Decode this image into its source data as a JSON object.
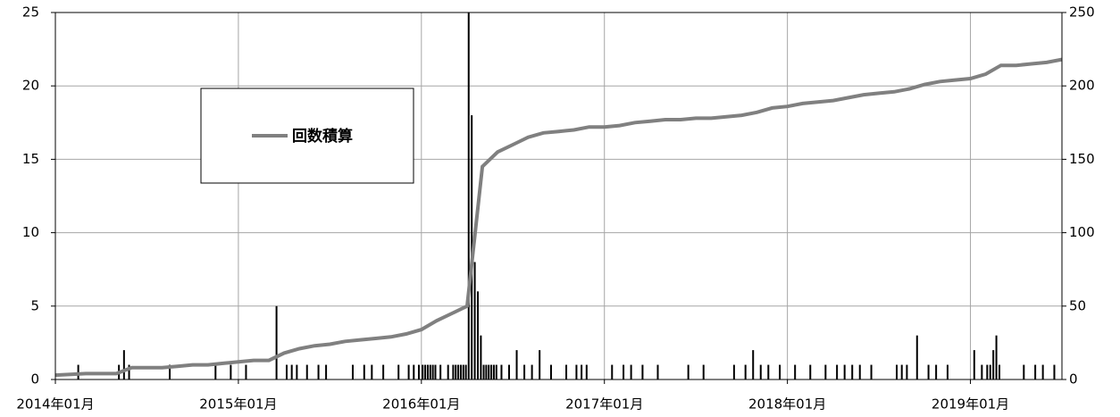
{
  "chart_data": {
    "type": "bar",
    "xlim": [
      "2014-01",
      "2019-07"
    ],
    "xticks": [
      {
        "value": "2014-01",
        "label": "2014年01月"
      },
      {
        "value": "2015-01",
        "label": "2015年01月"
      },
      {
        "value": "2016-01",
        "label": "2016年01月"
      },
      {
        "value": "2017-01",
        "label": "2017年01月"
      },
      {
        "value": "2018-01",
        "label": "2018年01月"
      },
      {
        "value": "2019-01",
        "label": "2019年01月"
      }
    ],
    "ylim": [
      0,
      25
    ],
    "yticks": [
      0,
      5,
      10,
      15,
      20,
      25
    ],
    "y2lim": [
      0,
      250
    ],
    "y2ticks": [
      0,
      50,
      100,
      150,
      200,
      250
    ],
    "grid": true,
    "series": [
      {
        "color": "#000000",
        "x": [
          "2014-02",
          "2014-05",
          "2014-05",
          "2014-05",
          "2014-08",
          "2014-11",
          "2014-12",
          "2015-01",
          "2015-03",
          "2015-04",
          "2015-04",
          "2015-04",
          "2015-05",
          "2015-06",
          "2015-06",
          "2015-08",
          "2015-09",
          "2015-09",
          "2015-10",
          "2015-11",
          "2015-12",
          "2015-12",
          "2015-12",
          "2016-01",
          "2016-01",
          "2016-01",
          "2016-01",
          "2016-01",
          "2016-01",
          "2016-02",
          "2016-02",
          "2016-03",
          "2016-03",
          "2016-03",
          "2016-03",
          "2016-03",
          "2016-03",
          "2016-04",
          "2016-04",
          "2016-04",
          "2016-04",
          "2016-04",
          "2016-05",
          "2016-05",
          "2016-05",
          "2016-05",
          "2016-05",
          "2016-05",
          "2016-06",
          "2016-06",
          "2016-07",
          "2016-07",
          "2016-08",
          "2016-08",
          "2016-09",
          "2016-10",
          "2016-11",
          "2016-11",
          "2016-11",
          "2017-01",
          "2017-02",
          "2017-02",
          "2017-03",
          "2017-04",
          "2017-06",
          "2017-07",
          "2017-09",
          "2017-10",
          "2017-10",
          "2017-11",
          "2017-11",
          "2017-12",
          "2018-01",
          "2018-02",
          "2018-03",
          "2018-04",
          "2018-04",
          "2018-05",
          "2018-05",
          "2018-06",
          "2018-08",
          "2018-08",
          "2018-08",
          "2018-09",
          "2018-10",
          "2018-10",
          "2018-11",
          "2019-01",
          "2019-01",
          "2019-02",
          "2019-02",
          "2019-02",
          "2019-02",
          "2019-02",
          "2019-04",
          "2019-05",
          "2019-05",
          "2019-06"
        ],
        "values": [
          1,
          1,
          2,
          1,
          1,
          1,
          1,
          1,
          5,
          1,
          1,
          1,
          1,
          1,
          1,
          1,
          1,
          1,
          1,
          1,
          1,
          1,
          1,
          1,
          1,
          1,
          1,
          1,
          1,
          1,
          1,
          1,
          1,
          1,
          1,
          1,
          1,
          25,
          18,
          8,
          6,
          3,
          1,
          1,
          1,
          1,
          1,
          1,
          1,
          1,
          2,
          1,
          1,
          2,
          1,
          1,
          1,
          1,
          1,
          1,
          1,
          1,
          1,
          1,
          1,
          1,
          1,
          1,
          2,
          1,
          1,
          1,
          1,
          1,
          1,
          1,
          1,
          1,
          1,
          1,
          1,
          1,
          1,
          3,
          1,
          1,
          1,
          2,
          1,
          1,
          1,
          2,
          3,
          1,
          1,
          1,
          1,
          1
        ]
      },
      {
        "name": "回数積算",
        "type": "line",
        "axis": "y2",
        "color": "#808080",
        "x": [
          "2014-01",
          "2014-02",
          "2014-03",
          "2014-04",
          "2014-05",
          "2014-06",
          "2014-07",
          "2014-08",
          "2014-09",
          "2014-10",
          "2014-11",
          "2014-12",
          "2015-01",
          "2015-02",
          "2015-03",
          "2015-04",
          "2015-05",
          "2015-06",
          "2015-07",
          "2015-08",
          "2015-09",
          "2015-10",
          "2015-11",
          "2015-12",
          "2016-01",
          "2016-02",
          "2016-03",
          "2016-04",
          "2016-05",
          "2016-06",
          "2016-07",
          "2016-08",
          "2016-09",
          "2016-10",
          "2016-11",
          "2016-12",
          "2017-01",
          "2017-02",
          "2017-03",
          "2017-04",
          "2017-05",
          "2017-06",
          "2017-07",
          "2017-08",
          "2017-09",
          "2017-10",
          "2017-11",
          "2017-12",
          "2018-01",
          "2018-02",
          "2018-03",
          "2018-04",
          "2018-05",
          "2018-06",
          "2018-07",
          "2018-08",
          "2018-09",
          "2018-10",
          "2018-11",
          "2018-12",
          "2019-01",
          "2019-02",
          "2019-03",
          "2019-04",
          "2019-05",
          "2019-06"
        ],
        "values": [
          3,
          4,
          4,
          4,
          8,
          8,
          8,
          9,
          10,
          10,
          11,
          12,
          13,
          13,
          18,
          21,
          23,
          24,
          26,
          27,
          28,
          29,
          31,
          34,
          40,
          45,
          50,
          145,
          155,
          160,
          165,
          168,
          169,
          170,
          172,
          172,
          173,
          175,
          176,
          177,
          177,
          178,
          178,
          179,
          180,
          182,
          185,
          186,
          188,
          189,
          190,
          192,
          194,
          195,
          196,
          198,
          201,
          203,
          204,
          205,
          208,
          214,
          214,
          215,
          216,
          218
        ]
      }
    ]
  }
}
